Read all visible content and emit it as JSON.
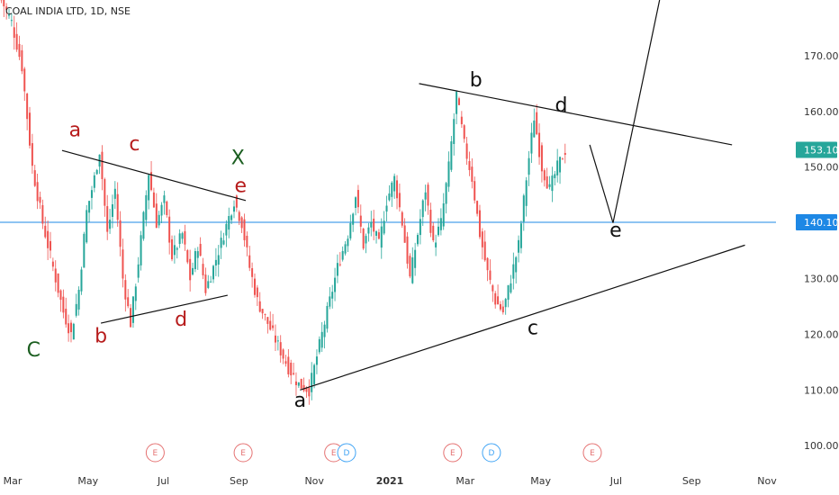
{
  "header": {
    "title": "COAL INDIA LTD, 1D, NSE"
  },
  "colors": {
    "up": "#26a69a",
    "down": "#ef5350",
    "hline": "#1e88e5",
    "price_tag": "#26a69a",
    "hline_tag": "#1e88e5",
    "label_red": "#b71c1c",
    "label_green": "#1b5e20",
    "label_black": "#111111",
    "earnings": "#e57373",
    "dividend": "#42a5f5"
  },
  "chart_data": {
    "type": "candlestick",
    "title": "COAL INDIA LTD, 1D, NSE",
    "ylim": [
      96,
      180
    ],
    "y_ticks": [
      "100.00",
      "110.00",
      "120.00",
      "130.00",
      "140.00",
      "150.00",
      "160.00",
      "170.00"
    ],
    "x_ticks": [
      "Mar",
      "May",
      "Jul",
      "Sep",
      "Nov",
      "2021",
      "Mar",
      "May",
      "Jul",
      "Sep",
      "Nov"
    ],
    "last_price": "153.10",
    "horizontal_line": "140.10",
    "price_path": [
      [
        0,
        180
      ],
      [
        4,
        176
      ],
      [
        8,
        168
      ],
      [
        12,
        150
      ],
      [
        16,
        140
      ],
      [
        20,
        132
      ],
      [
        24,
        124
      ],
      [
        27,
        120
      ],
      [
        30,
        128
      ],
      [
        33,
        142
      ],
      [
        36,
        148
      ],
      [
        38,
        153
      ],
      [
        41,
        138
      ],
      [
        44,
        146
      ],
      [
        47,
        130
      ],
      [
        50,
        122
      ],
      [
        53,
        133
      ],
      [
        57,
        149
      ],
      [
        60,
        140
      ],
      [
        63,
        144
      ],
      [
        66,
        134
      ],
      [
        70,
        138
      ],
      [
        73,
        130
      ],
      [
        76,
        136
      ],
      [
        79,
        128
      ],
      [
        82,
        132
      ],
      [
        86,
        138
      ],
      [
        90,
        144
      ],
      [
        93,
        140
      ],
      [
        96,
        132
      ],
      [
        99,
        126
      ],
      [
        103,
        122
      ],
      [
        107,
        118
      ],
      [
        111,
        114
      ],
      [
        115,
        111
      ],
      [
        119,
        110
      ],
      [
        122,
        116
      ],
      [
        126,
        124
      ],
      [
        130,
        132
      ],
      [
        134,
        138
      ],
      [
        137,
        145
      ],
      [
        140,
        136
      ],
      [
        143,
        140
      ],
      [
        146,
        136
      ],
      [
        149,
        144
      ],
      [
        152,
        148
      ],
      [
        155,
        140
      ],
      [
        158,
        130
      ],
      [
        161,
        138
      ],
      [
        164,
        146
      ],
      [
        167,
        136
      ],
      [
        170,
        140
      ],
      [
        173,
        150
      ],
      [
        176,
        163
      ],
      [
        179,
        154
      ],
      [
        182,
        148
      ],
      [
        185,
        138
      ],
      [
        188,
        131
      ],
      [
        191,
        126
      ],
      [
        194,
        124
      ],
      [
        197,
        130
      ],
      [
        200,
        136
      ],
      [
        203,
        148
      ],
      [
        206,
        159
      ],
      [
        209,
        150
      ],
      [
        212,
        146
      ],
      [
        215,
        150
      ],
      [
        218,
        153
      ]
    ],
    "annotations": [
      {
        "text": "a",
        "x": 29,
        "y": 155.5,
        "color": "label_red"
      },
      {
        "text": "c",
        "x": 52,
        "y": 153,
        "color": "label_red"
      },
      {
        "text": "b",
        "x": 39,
        "y": 118.5,
        "color": "label_red"
      },
      {
        "text": "d",
        "x": 70,
        "y": 121.5,
        "color": "label_red"
      },
      {
        "text": "e",
        "x": 93,
        "y": 145.5,
        "color": "label_red"
      },
      {
        "text": "C",
        "x": 13,
        "y": 116,
        "color": "label_green"
      },
      {
        "text": "X",
        "x": 92,
        "y": 150.5,
        "color": "label_green"
      },
      {
        "text": "a",
        "x": 116,
        "y": 107,
        "color": "label_black"
      },
      {
        "text": "b",
        "x": 184,
        "y": 164.5,
        "color": "label_black"
      },
      {
        "text": "c",
        "x": 206,
        "y": 120,
        "color": "label_black"
      },
      {
        "text": "d",
        "x": 217,
        "y": 160,
        "color": "label_black"
      },
      {
        "text": "e",
        "x": 238,
        "y": 137.5,
        "color": "label_black"
      }
    ],
    "trend_lines": [
      {
        "from": [
          24,
          153
        ],
        "to": [
          95,
          144
        ]
      },
      {
        "from": [
          39,
          122
        ],
        "to": [
          88,
          127
        ]
      },
      {
        "from": [
          116,
          110
        ],
        "to": [
          288,
          136
        ]
      },
      {
        "from": [
          162,
          165
        ],
        "to": [
          283,
          154
        ]
      },
      {
        "from": [
          228,
          154
        ],
        "to": [
          237,
          140
        ]
      },
      {
        "from": [
          237,
          140
        ],
        "to": [
          255,
          180
        ]
      }
    ],
    "event_markers": [
      {
        "text": "E",
        "x": 60,
        "kind": "earnings"
      },
      {
        "text": "E",
        "x": 94,
        "kind": "earnings"
      },
      {
        "text": "E",
        "x": 129,
        "kind": "earnings"
      },
      {
        "text": "D",
        "x": 134,
        "kind": "dividend"
      },
      {
        "text": "E",
        "x": 175,
        "kind": "earnings"
      },
      {
        "text": "D",
        "x": 190,
        "kind": "dividend"
      },
      {
        "text": "E",
        "x": 229,
        "kind": "earnings"
      }
    ]
  }
}
